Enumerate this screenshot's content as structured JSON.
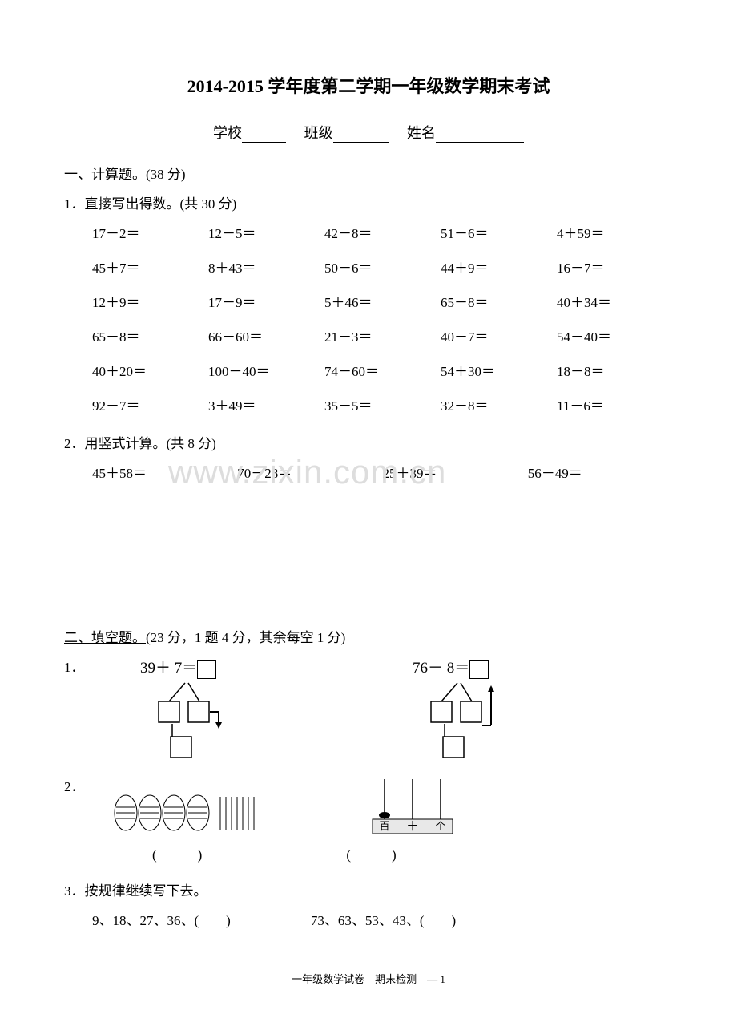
{
  "title": "2014-2015 学年度第二学期一年级数学期末考试",
  "info": {
    "school_label": "学校",
    "class_label": "班级",
    "name_label": "姓名"
  },
  "section1": {
    "header_underlined": "一、计算题。",
    "header_rest": "(38 分)",
    "q1": {
      "label": "1．直接写出得数。(共 30 分)",
      "items": [
        "17－2＝",
        "12－5＝",
        "42－8＝",
        "51－6＝",
        "4＋59＝",
        "45＋7＝",
        "8＋43＝",
        "50－6＝",
        "44＋9＝",
        "16－7＝",
        "12＋9＝",
        "17－9＝",
        "5＋46＝",
        "65－8＝",
        "40＋34＝",
        "65－8＝",
        "66－60＝",
        "21－3＝",
        "40－7＝",
        "54－40＝",
        "40＋20＝",
        "100－40＝",
        "74－60＝",
        "54＋30＝",
        "18－8＝",
        "92－7＝",
        "3＋49＝",
        "35－5＝",
        "32－8＝",
        "11－6＝"
      ]
    },
    "q2": {
      "label": "2．用竖式计算。(共 8 分)",
      "items": [
        "45＋58＝",
        "70－28＝",
        "25＋39＝",
        "56－49＝"
      ]
    }
  },
  "watermark": "www.zixin.com.cn",
  "section2": {
    "header_underlined": "二、填空题。",
    "header_rest": "(23 分，1 题 4 分，其余每空 1 分)",
    "q1": {
      "label": "1．",
      "eq1": "39＋ 7＝",
      "eq2": "76－ 8＝"
    },
    "q2": {
      "label": "2．",
      "places": "百 十 个"
    },
    "q3": {
      "label": "3．按规律继续写下去。",
      "seq1": "9、18、27、36、(　　)",
      "seq2": "73、63、53、43、(　　)"
    },
    "paren": "(　　　)"
  },
  "footer": "一年级数学试卷　期末检测　— 1",
  "colors": {
    "text": "#000000",
    "bg": "#ffffff",
    "watermark": "#dddddd",
    "box": "#e8e8e8"
  }
}
